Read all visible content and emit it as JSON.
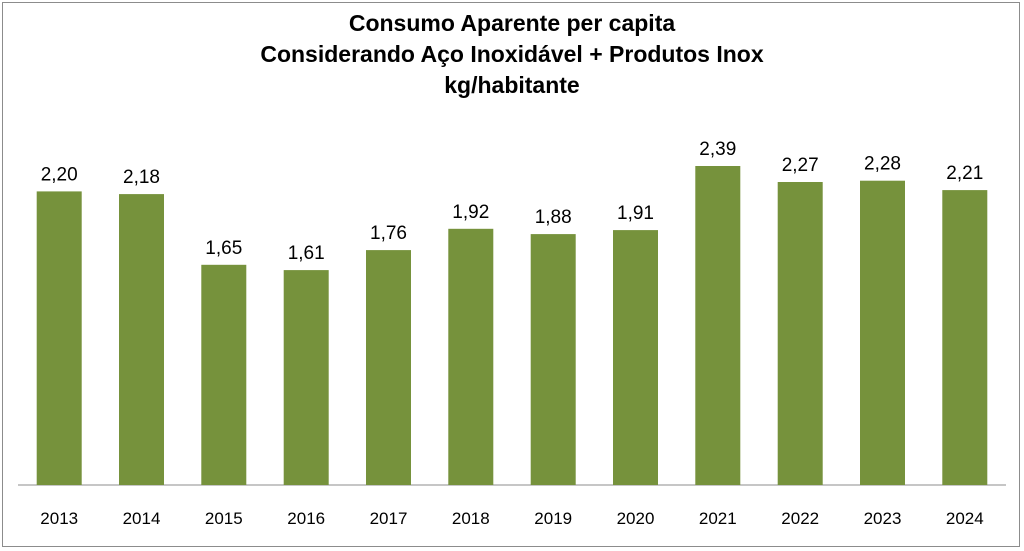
{
  "chart_data": {
    "type": "bar",
    "title": [
      "Consumo Aparente per capita",
      "Considerando Aço Inoxidável + Produtos Inox",
      "kg/habitante"
    ],
    "categories": [
      "2013",
      "2014",
      "2015",
      "2016",
      "2017",
      "2018",
      "2019",
      "2020",
      "2021",
      "2022",
      "2023",
      "2024"
    ],
    "values": [
      2.2,
      2.18,
      1.65,
      1.61,
      1.76,
      1.92,
      1.88,
      1.91,
      2.39,
      2.27,
      2.28,
      2.21
    ],
    "value_labels": [
      "2,20",
      "2,18",
      "1,65",
      "1,61",
      "1,76",
      "1,92",
      "1,88",
      "1,91",
      "2,39",
      "2,27",
      "2,28",
      "2,21"
    ],
    "bar_color": "#76923c",
    "ylim": [
      0,
      2.6
    ],
    "grid": false,
    "legend": "none",
    "xlabel": "",
    "ylabel": ""
  }
}
